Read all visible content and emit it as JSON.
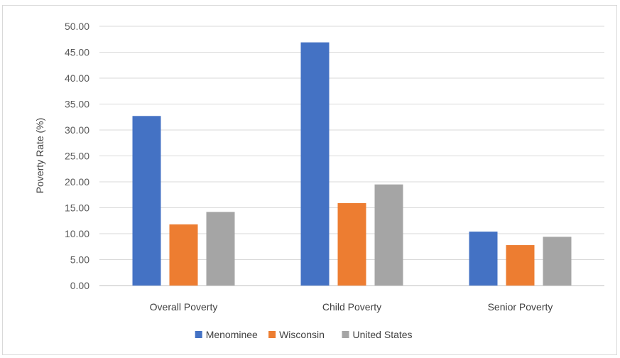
{
  "chart_data": {
    "type": "bar",
    "title": "",
    "xlabel": "",
    "ylabel": "Poverty Rate (%)",
    "ylim": [
      0,
      50
    ],
    "ytick_step": 5,
    "ytick_format": "2dp",
    "grid": true,
    "legend_position": "bottom",
    "categories": [
      "Overall Poverty",
      "Child Poverty",
      "Senior Poverty"
    ],
    "series": [
      {
        "name": "Menominee",
        "color": "#4472C4",
        "values": [
          32.7,
          46.9,
          10.4
        ]
      },
      {
        "name": "Wisconsin",
        "color": "#ED7D31",
        "values": [
          11.8,
          15.9,
          7.8
        ]
      },
      {
        "name": "United States",
        "color": "#A5A5A5",
        "values": [
          14.2,
          19.5,
          9.4
        ]
      }
    ]
  }
}
